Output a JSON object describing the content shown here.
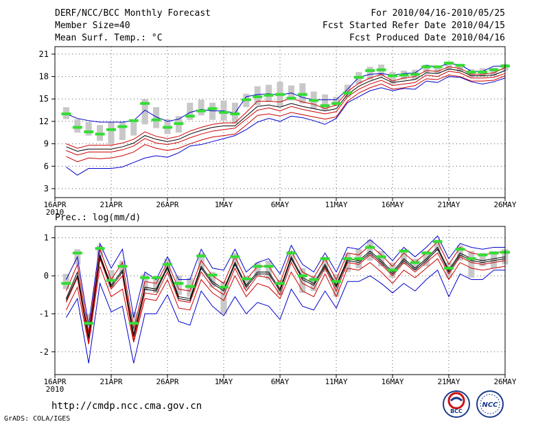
{
  "header": {
    "title": "DERF/NCC/BCC Monthly Forecast",
    "member_size": "Member Size=40",
    "variable": "Mean Surf. Temp.: °C",
    "period": "For 2010/04/16-2010/05/25",
    "refer_date": "Fcst Started Refer Date 2010/04/15",
    "produced_date": "Fcst Produced Date 2010/04/16"
  },
  "footer": {
    "url": "http://cmdp.ncc.cma.gov.cn",
    "credit": "GrADS: COLA/IGES",
    "logo_bcc": "BCC",
    "logo_ncc": "NCC"
  },
  "colors": {
    "outer": "#0000cc",
    "inner": "#cc0000",
    "mean": "#000000",
    "box": "#c8c8c8",
    "obs": "#33dd33"
  },
  "chart_data": [
    {
      "type": "line",
      "title": "Mean Surf. Temp.: °C",
      "year_label": "2010",
      "xtick_labels": [
        "16APR",
        "21APR",
        "26APR",
        "1MAY",
        "6MAY",
        "11MAY",
        "16MAY",
        "21MAY",
        "26MAY"
      ],
      "xtick_days": [
        0,
        5,
        10,
        15,
        20,
        25,
        30,
        35,
        40
      ],
      "yticks": [
        3,
        6,
        9,
        12,
        15,
        18,
        21
      ],
      "ylim": [
        1.8,
        22
      ],
      "x_days": [
        1,
        2,
        3,
        4,
        5,
        6,
        7,
        8,
        9,
        10,
        11,
        12,
        13,
        14,
        15,
        16,
        17,
        18,
        19,
        20,
        21,
        22,
        23,
        24,
        25,
        26,
        27,
        28,
        29,
        30,
        31,
        32,
        33,
        34,
        35,
        36,
        37,
        38,
        39,
        40
      ],
      "series": [
        {
          "name": "upper",
          "role": "outer",
          "values": [
            13.0,
            12.4,
            12.1,
            11.9,
            11.9,
            11.9,
            12.1,
            13.5,
            12.6,
            12.0,
            12.3,
            13.2,
            13.6,
            13.4,
            13.4,
            13.1,
            15.3,
            15.6,
            15.7,
            15.5,
            15.8,
            15.2,
            14.9,
            14.9,
            14.9,
            16.3,
            17.9,
            18.3,
            18.4,
            18.2,
            18.4,
            18.5,
            19.5,
            19.3,
            19.7,
            19.6,
            18.7,
            18.7,
            19.4,
            19.4
          ]
        },
        {
          "name": "upper-inner",
          "role": "inner",
          "values": [
            9.0,
            8.4,
            8.8,
            8.8,
            8.8,
            9.1,
            9.6,
            10.6,
            10.0,
            9.7,
            10.0,
            10.7,
            11.2,
            11.6,
            11.8,
            11.8,
            13.2,
            14.7,
            14.7,
            14.6,
            15.1,
            14.6,
            14.3,
            13.7,
            14.2,
            16.0,
            17.1,
            17.8,
            18.3,
            17.4,
            17.8,
            18.0,
            18.8,
            18.7,
            19.3,
            19.1,
            18.3,
            18.3,
            18.5,
            19.2
          ]
        },
        {
          "name": "mean",
          "role": "mean",
          "values": [
            8.6,
            8.0,
            8.3,
            8.3,
            8.3,
            8.6,
            9.1,
            10.1,
            9.6,
            9.3,
            9.6,
            10.3,
            10.8,
            11.2,
            11.4,
            11.4,
            12.7,
            14.0,
            14.2,
            13.9,
            14.4,
            14.0,
            13.7,
            13.4,
            13.7,
            15.6,
            16.7,
            17.4,
            17.9,
            17.2,
            17.4,
            17.6,
            18.5,
            18.4,
            19.0,
            18.8,
            18.1,
            18.1,
            18.2,
            18.8
          ]
        },
        {
          "name": "lower-inner",
          "role": "inner",
          "values": [
            8.1,
            7.5,
            7.9,
            7.9,
            7.9,
            8.2,
            8.7,
            9.7,
            9.1,
            8.9,
            9.2,
            9.8,
            10.3,
            10.7,
            10.9,
            11.1,
            12.3,
            13.5,
            13.8,
            13.4,
            14.0,
            13.6,
            13.3,
            13.0,
            13.3,
            15.3,
            16.3,
            17.0,
            17.5,
            16.8,
            17.0,
            17.2,
            18.2,
            18.0,
            18.7,
            18.5,
            17.8,
            17.8,
            17.9,
            18.4
          ]
        },
        {
          "name": "lower-inner-2",
          "role": "inner",
          "values": [
            7.3,
            6.6,
            7.1,
            7.0,
            7.1,
            7.4,
            7.9,
            8.9,
            8.4,
            8.1,
            8.4,
            9.0,
            9.5,
            9.9,
            10.1,
            10.3,
            11.5,
            12.8,
            13.0,
            12.7,
            13.2,
            12.9,
            12.6,
            12.3,
            12.6,
            14.7,
            15.8,
            16.5,
            17.0,
            16.3,
            16.5,
            16.8,
            17.7,
            17.6,
            18.2,
            18.0,
            17.4,
            17.4,
            17.5,
            18.1
          ]
        },
        {
          "name": "lower",
          "role": "outer",
          "values": [
            5.9,
            4.8,
            5.7,
            5.7,
            5.7,
            5.9,
            6.5,
            7.1,
            7.4,
            7.2,
            7.8,
            8.7,
            8.9,
            9.3,
            9.7,
            10.1,
            10.9,
            11.9,
            12.4,
            12.0,
            12.7,
            12.5,
            12.1,
            11.6,
            12.4,
            14.5,
            15.3,
            16.1,
            16.5,
            16.1,
            16.4,
            16.3,
            17.4,
            17.2,
            18.0,
            17.9,
            17.3,
            17.0,
            17.3,
            17.8
          ]
        }
      ],
      "boxes": [
        [
          12.3,
          13.9
        ],
        [
          10.5,
          12.3
        ],
        [
          10.1,
          11.9
        ],
        [
          9.4,
          11.5
        ],
        [
          8.9,
          11.9
        ],
        [
          9.5,
          11.9
        ],
        [
          10.1,
          12.2
        ],
        [
          11.6,
          15.0
        ],
        [
          11.1,
          13.9
        ],
        [
          10.3,
          12.3
        ],
        [
          10.5,
          12.7
        ],
        [
          12.2,
          14.5
        ],
        [
          12.8,
          14.9
        ],
        [
          12.2,
          14.5
        ],
        [
          12.1,
          14.8
        ],
        [
          11.7,
          14.5
        ],
        [
          13.9,
          15.7
        ],
        [
          14.2,
          16.7
        ],
        [
          14.6,
          16.9
        ],
        [
          14.0,
          17.3
        ],
        [
          14.8,
          16.8
        ],
        [
          14.4,
          17.1
        ],
        [
          13.7,
          16.0
        ],
        [
          13.5,
          15.6
        ],
        [
          14.0,
          15.3
        ],
        [
          15.2,
          16.9
        ],
        [
          17.0,
          18.6
        ],
        [
          17.6,
          19.3
        ],
        [
          18.0,
          19.6
        ],
        [
          17.0,
          18.6
        ],
        [
          17.6,
          18.8
        ],
        [
          17.6,
          18.9
        ],
        [
          18.5,
          19.6
        ],
        [
          18.4,
          19.4
        ],
        [
          18.9,
          20.0
        ],
        [
          18.6,
          19.7
        ],
        [
          17.9,
          19.0
        ],
        [
          18.0,
          19.1
        ],
        [
          18.1,
          19.2
        ],
        [
          18.8,
          19.7
        ]
      ],
      "obs": [
        13.0,
        11.2,
        10.6,
        10.3,
        10.9,
        11.3,
        12.1,
        14.4,
        12.2,
        11.2,
        11.7,
        12.7,
        13.4,
        13.7,
        13.2,
        13.0,
        14.9,
        15.3,
        15.5,
        15.6,
        15.1,
        15.6,
        14.8,
        14.1,
        14.4,
        15.8,
        17.9,
        18.8,
        18.9,
        18.1,
        18.2,
        18.3,
        19.3,
        19.3,
        19.8,
        19.5,
        18.6,
        18.6,
        18.9,
        19.4
      ]
    },
    {
      "type": "line",
      "title": "Prec.: log(mm/d)",
      "year_label": "2010",
      "xtick_labels": [
        "16APR",
        "21APR",
        "26APR",
        "1MAY",
        "6MAY",
        "11MAY",
        "16MAY",
        "21MAY",
        "26MAY"
      ],
      "xtick_days": [
        0,
        5,
        10,
        15,
        20,
        25,
        30,
        35,
        40
      ],
      "yticks": [
        -2,
        -1,
        0,
        1
      ],
      "ylim": [
        -2.6,
        1.3
      ],
      "x_days": [
        1,
        2,
        3,
        4,
        5,
        6,
        7,
        8,
        9,
        10,
        11,
        12,
        13,
        14,
        15,
        16,
        17,
        18,
        19,
        20,
        21,
        22,
        23,
        24,
        25,
        26,
        27,
        28,
        29,
        30,
        31,
        32,
        33,
        34,
        35,
        36,
        37,
        38,
        39,
        40
      ],
      "series": [
        {
          "name": "upper",
          "role": "outer",
          "values": [
            -0.1,
            0.5,
            -1.3,
            0.85,
            0.2,
            0.7,
            -1.1,
            0.1,
            -0.1,
            0.5,
            -0.1,
            -0.1,
            0.7,
            0.2,
            0.15,
            0.7,
            0.1,
            0.35,
            0.45,
            0.05,
            0.8,
            0.3,
            0.1,
            0.6,
            0.1,
            0.75,
            0.7,
            0.95,
            0.7,
            0.4,
            0.75,
            0.5,
            0.75,
            1.05,
            0.45,
            0.85,
            0.75,
            0.7,
            0.75,
            0.75
          ]
        },
        {
          "name": "upper-inner",
          "role": "inner",
          "values": [
            -0.4,
            0.3,
            -1.5,
            0.7,
            -0.1,
            0.35,
            -1.4,
            -0.15,
            -0.2,
            0.35,
            -0.35,
            -0.4,
            0.4,
            0.0,
            -0.2,
            0.5,
            -0.1,
            0.25,
            0.25,
            -0.2,
            0.65,
            0.1,
            -0.05,
            0.45,
            -0.1,
            0.6,
            0.55,
            0.8,
            0.55,
            0.25,
            0.6,
            0.35,
            0.6,
            0.9,
            0.3,
            0.75,
            0.6,
            0.55,
            0.6,
            0.65
          ]
        },
        {
          "name": "mean",
          "role": "mean",
          "values": [
            -0.6,
            0.1,
            -1.65,
            0.55,
            -0.25,
            0.15,
            -1.55,
            -0.3,
            -0.35,
            0.25,
            -0.55,
            -0.6,
            0.25,
            -0.15,
            -0.35,
            0.35,
            -0.25,
            0.1,
            0.1,
            -0.35,
            0.5,
            -0.05,
            -0.2,
            0.3,
            -0.25,
            0.45,
            0.4,
            0.65,
            0.4,
            0.1,
            0.45,
            0.2,
            0.45,
            0.75,
            0.15,
            0.6,
            0.45,
            0.4,
            0.45,
            0.5
          ]
        },
        {
          "name": "lower-inner",
          "role": "inner",
          "values": [
            -0.7,
            -0.05,
            -1.75,
            0.45,
            -0.35,
            0.0,
            -1.7,
            -0.45,
            -0.5,
            0.1,
            -0.65,
            -0.7,
            0.1,
            -0.3,
            -0.5,
            0.2,
            -0.4,
            0.0,
            -0.05,
            -0.5,
            0.35,
            -0.2,
            -0.35,
            0.2,
            -0.4,
            0.35,
            0.3,
            0.55,
            0.3,
            0.0,
            0.35,
            0.1,
            0.35,
            0.6,
            0.05,
            0.5,
            0.35,
            0.3,
            0.35,
            0.4
          ]
        },
        {
          "name": "lower-inner-2",
          "role": "inner",
          "values": [
            -0.9,
            -0.3,
            -1.8,
            0.25,
            -0.55,
            -0.35,
            -1.75,
            -0.6,
            -0.65,
            -0.1,
            -0.85,
            -0.9,
            -0.1,
            -0.45,
            -0.65,
            0.0,
            -0.55,
            -0.2,
            -0.3,
            -0.6,
            0.1,
            -0.4,
            -0.55,
            0.05,
            -0.55,
            0.2,
            0.15,
            0.35,
            0.1,
            -0.2,
            0.15,
            -0.05,
            0.2,
            0.45,
            -0.1,
            0.35,
            0.2,
            0.15,
            0.2,
            0.25
          ]
        },
        {
          "name": "lower",
          "role": "outer",
          "values": [
            -1.1,
            -0.6,
            -2.3,
            -0.2,
            -0.95,
            -0.8,
            -2.3,
            -1.0,
            -1.0,
            -0.5,
            -1.2,
            -1.3,
            -0.4,
            -0.8,
            -1.05,
            -0.55,
            -1.0,
            -0.7,
            -0.8,
            -1.15,
            -0.35,
            -0.8,
            -0.9,
            -0.4,
            -0.85,
            -0.15,
            -0.15,
            0.0,
            -0.2,
            -0.45,
            -0.2,
            -0.4,
            -0.1,
            0.15,
            -0.55,
            0.05,
            -0.1,
            -0.1,
            0.15,
            0.15
          ]
        },
        {
          "name": "middle",
          "role": "mean",
          "values": [
            -0.65,
            0.0,
            -1.6,
            0.5,
            -0.3,
            0.1,
            -1.6,
            -0.35,
            -0.4,
            0.2,
            -0.6,
            -0.65,
            0.2,
            -0.2,
            -0.4,
            0.3,
            -0.3,
            0.05,
            0.05,
            -0.4,
            0.45,
            -0.1,
            -0.25,
            0.25,
            -0.3,
            0.4,
            0.35,
            0.6,
            0.35,
            0.05,
            0.4,
            0.15,
            0.4,
            0.7,
            0.1,
            0.55,
            0.4,
            0.35,
            0.4,
            0.45
          ]
        }
      ],
      "boxes": [
        [
          -0.35,
          0.05
        ],
        [
          0.3,
          0.7
        ],
        [
          -1.5,
          -1.0
        ],
        [
          0.5,
          0.8
        ],
        [
          -0.3,
          0.15
        ],
        [
          0.05,
          0.4
        ],
        [
          -1.45,
          -0.95
        ],
        [
          -0.4,
          0.05
        ],
        [
          -0.45,
          0.0
        ],
        [
          0.1,
          0.45
        ],
        [
          -0.5,
          0.0
        ],
        [
          -0.55,
          -0.05
        ],
        [
          0.15,
          0.6
        ],
        [
          -0.3,
          0.1
        ],
        [
          -1.0,
          -0.15
        ],
        [
          0.25,
          0.6
        ],
        [
          -0.35,
          0.0
        ],
        [
          0.0,
          0.35
        ],
        [
          -0.1,
          0.4
        ],
        [
          -0.5,
          -0.1
        ],
        [
          0.35,
          0.65
        ],
        [
          -0.45,
          0.2
        ],
        [
          -0.4,
          0.0
        ],
        [
          0.1,
          0.5
        ],
        [
          -0.55,
          0.05
        ],
        [
          0.1,
          0.6
        ],
        [
          0.2,
          0.7
        ],
        [
          0.4,
          0.95
        ],
        [
          0.25,
          0.65
        ],
        [
          -0.05,
          0.35
        ],
        [
          0.3,
          0.7
        ],
        [
          0.15,
          0.45
        ],
        [
          0.25,
          0.65
        ],
        [
          0.65,
          0.95
        ],
        [
          -0.05,
          0.35
        ],
        [
          0.4,
          0.8
        ],
        [
          -0.05,
          0.65
        ],
        [
          0.25,
          0.6
        ],
        [
          0.2,
          0.65
        ],
        [
          0.3,
          0.7
        ]
      ],
      "obs": [
        -0.2,
        0.6,
        -1.25,
        0.72,
        -0.12,
        0.25,
        -1.25,
        -0.05,
        -0.05,
        0.3,
        -0.2,
        -0.28,
        0.52,
        0.02,
        -0.3,
        0.5,
        -0.08,
        0.25,
        0.25,
        -0.2,
        0.6,
        0.0,
        -0.1,
        0.45,
        -0.15,
        0.45,
        0.45,
        0.75,
        0.5,
        0.15,
        0.65,
        0.35,
        0.6,
        0.9,
        0.2,
        0.7,
        0.45,
        0.55,
        0.6,
        0.62
      ]
    }
  ]
}
